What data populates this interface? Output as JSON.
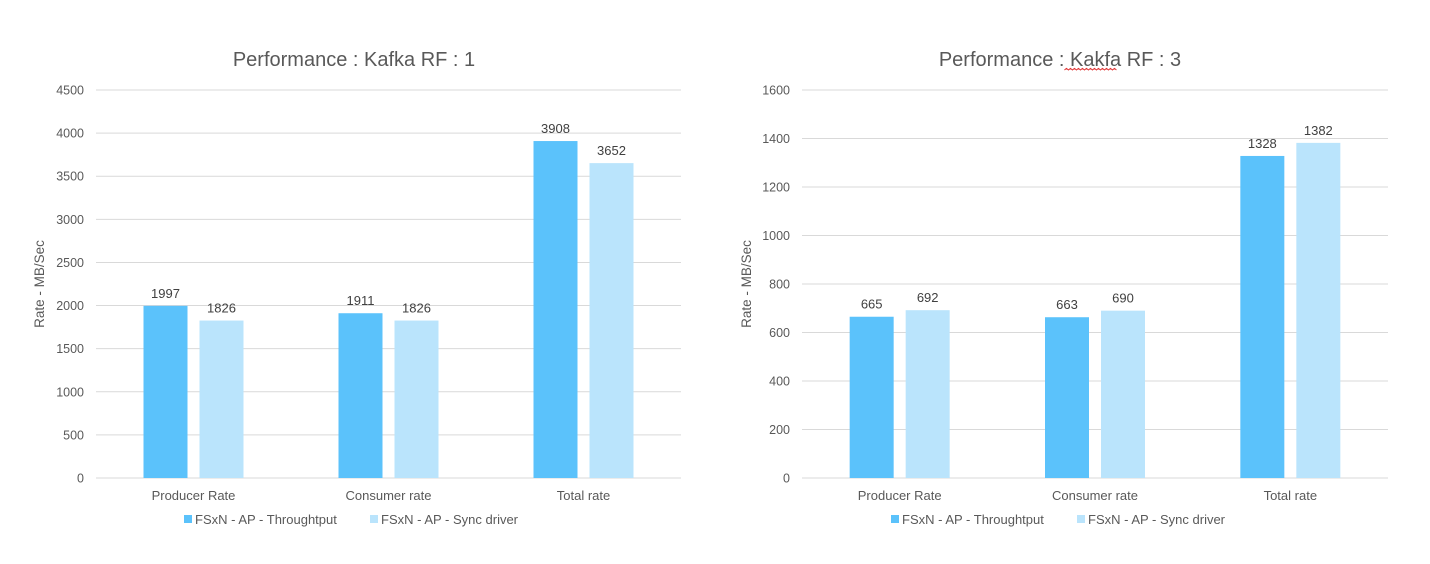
{
  "chart_data": [
    {
      "type": "bar",
      "title": "Performance : Kafka RF : 1",
      "xlabel": "",
      "ylabel": "Rate - MB/Sec",
      "categories": [
        "Producer Rate",
        "Consumer rate",
        "Total rate"
      ],
      "series": [
        {
          "name": "FSxN - AP - Throughtput",
          "values": [
            1997,
            1911,
            3908
          ],
          "color": "#5bc2fb"
        },
        {
          "name": "FSxN - AP - Sync driver",
          "values": [
            1826,
            1826,
            3652
          ],
          "color": "#bae4fc"
        }
      ],
      "ylim": [
        0,
        4500
      ],
      "yticks": [
        0,
        500,
        1000,
        1500,
        2000,
        2500,
        3000,
        3500,
        4000,
        4500
      ],
      "grid": true,
      "legend": "bottom",
      "data_labels": true
    },
    {
      "type": "bar",
      "title": "Performance : Kakfa RF : 3",
      "xlabel": "",
      "ylabel": "Rate - MB/Sec",
      "categories": [
        "Producer Rate",
        "Consumer rate",
        "Total rate"
      ],
      "series": [
        {
          "name": "FSxN - AP - Throughtput",
          "values": [
            665,
            663,
            1328
          ],
          "color": "#5bc2fb"
        },
        {
          "name": "FSxN - AP - Sync driver",
          "values": [
            692,
            690,
            1382
          ],
          "color": "#bae4fc"
        }
      ],
      "ylim": [
        0,
        1600
      ],
      "yticks": [
        0,
        200,
        400,
        600,
        800,
        1000,
        1200,
        1400,
        1600
      ],
      "grid": true,
      "legend": "bottom",
      "data_labels": true,
      "title_spellcheck_word": "Kakfa"
    }
  ]
}
